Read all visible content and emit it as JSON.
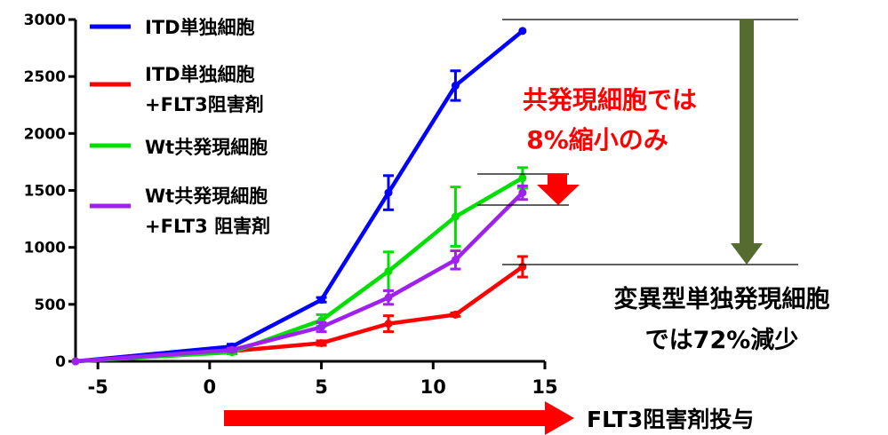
{
  "chart_data": {
    "type": "line",
    "xlim": [
      -6,
      15
    ],
    "ylim": [
      0,
      3000
    ],
    "x_ticks": [
      -5,
      0,
      5,
      10,
      15
    ],
    "y_ticks": [
      0,
      500,
      1000,
      1500,
      2000,
      2500,
      3000
    ],
    "series": [
      {
        "key": "itd",
        "name": "ITD単独細胞",
        "name_lines": [
          "ITD単独細胞"
        ],
        "color": "#0000ff",
        "x": [
          -6,
          1,
          5,
          8,
          11,
          14
        ],
        "y": [
          0,
          130,
          540,
          1480,
          2420,
          2900
        ],
        "err": [
          0,
          20,
          20,
          150,
          130,
          0
        ]
      },
      {
        "key": "itd_inh",
        "name": "ITD単独細胞 +FLT3阻害剤",
        "name_lines": [
          "ITD単独細胞",
          "+FLT3阻害剤"
        ],
        "color": "#ff0000",
        "x": [
          -6,
          1,
          5,
          8,
          11,
          14
        ],
        "y": [
          0,
          90,
          160,
          330,
          410,
          830
        ],
        "err": [
          0,
          10,
          20,
          70,
          15,
          90
        ]
      },
      {
        "key": "wt",
        "name": "Wt共発現細胞",
        "name_lines": [
          "Wt共発現細胞"
        ],
        "color": "#00e000",
        "x": [
          -6,
          1,
          5,
          8,
          11,
          14
        ],
        "y": [
          0,
          80,
          360,
          790,
          1270,
          1610
        ],
        "err": [
          0,
          15,
          50,
          170,
          260,
          90
        ]
      },
      {
        "key": "wt_inh",
        "name": "Wt共発現細胞 +FLT3 阻害剤",
        "name_lines": [
          "Wt共発現細胞",
          "+FLT3 阻害剤"
        ],
        "color": "#a020f0",
        "x": [
          -6,
          1,
          5,
          8,
          11,
          14
        ],
        "y": [
          0,
          100,
          300,
          560,
          890,
          1480
        ],
        "err": [
          0,
          15,
          40,
          60,
          80,
          60
        ]
      }
    ],
    "annotations": {
      "coexp_lines": [
        "共発現細胞では",
        "8%縮小のみ"
      ],
      "mutant_lines": [
        "変異型単独発現細胞",
        "では72%減少"
      ],
      "arrow_label": "FLT3阻害剤投与"
    },
    "colors": {
      "big_arrow": "#556b2f",
      "small_arrow": "#ff0000",
      "bottom_arrow": "#ff0000",
      "guide_lines": "#000000"
    }
  }
}
